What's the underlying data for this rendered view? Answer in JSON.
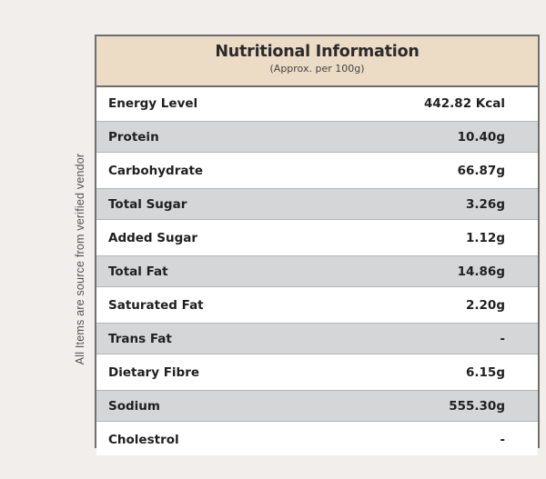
{
  "side_note": "All Items are source from verified vendor",
  "panel": {
    "title": "Nutritional Information",
    "subtitle": "(Approx. per 100g)"
  },
  "rows": [
    {
      "label": "Energy Level",
      "value": "442.82 Kcal"
    },
    {
      "label": "Protein",
      "value": "10.40g"
    },
    {
      "label": "Carbohydrate",
      "value": "66.87g"
    },
    {
      "label": "Total Sugar",
      "value": "3.26g"
    },
    {
      "label": "Added Sugar",
      "value": "1.12g"
    },
    {
      "label": "Total Fat",
      "value": "14.86g"
    },
    {
      "label": "Saturated Fat",
      "value": "2.20g"
    },
    {
      "label": "Trans Fat",
      "value": "-"
    },
    {
      "label": "Dietary Fibre",
      "value": "6.15g"
    },
    {
      "label": "Sodium",
      "value": "555.30g"
    },
    {
      "label": "Cholestrol",
      "value": "-"
    }
  ],
  "colors": {
    "header_background": "#ecdcc6",
    "shaded_row": "#d4d6d7",
    "page_background": "#f2eeec",
    "border": "#6f6f6f"
  }
}
